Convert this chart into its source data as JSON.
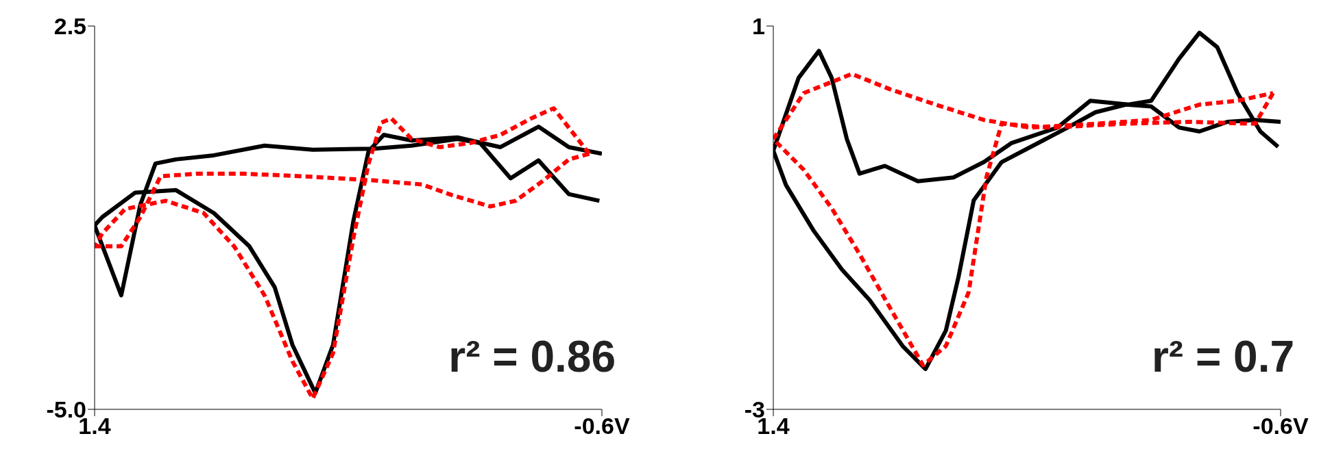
{
  "chart_data": [
    {
      "type": "line",
      "xlim": [
        1.4,
        -0.6
      ],
      "ylim": [
        -5,
        2.5
      ],
      "xticks": [
        1.4,
        {
          "value": -0.6,
          "label": "-0.6V"
        }
      ],
      "yticks": [
        2.5,
        {
          "value": -5,
          "label": "-5.0"
        }
      ],
      "grid": false,
      "legend": false,
      "marker": "none",
      "annotations": [
        "r² = 0.86"
      ],
      "series": [
        {
          "color": "#000000",
          "line_style": "solid",
          "x": [
            1.4,
            1.295,
            1.22,
            1.16,
            1.08,
            0.93,
            0.73,
            0.54,
            0.3,
            0.15,
            -0.03,
            -0.12,
            -0.24,
            -0.35,
            -0.47,
            -0.59
          ],
          "values": [
            -1.4,
            -2.77,
            -1.0,
            -0.19,
            -0.11,
            -0.03,
            0.16,
            0.08,
            0.1,
            0.16,
            0.29,
            0.21,
            -0.48,
            -0.13,
            -0.79,
            -0.92
          ]
        },
        {
          "color": "#000000",
          "line_style": "solid",
          "x": [
            -0.6,
            -0.47,
            -0.35,
            -0.2,
            -0.03,
            0.15,
            0.26,
            0.32,
            0.38,
            0.46,
            0.53,
            0.62,
            0.69,
            0.79,
            0.93,
            1.08,
            1.24,
            1.37,
            1.4
          ],
          "values": [
            0,
            0.13,
            0.53,
            0.13,
            0.32,
            0.26,
            0.37,
            0.05,
            -1.32,
            -3.74,
            -4.68,
            -3.74,
            -2.61,
            -1.81,
            -1.16,
            -0.71,
            -0.76,
            -1.24,
            -1.4
          ]
        },
        {
          "color": "#ff0000",
          "line_style": "dashed",
          "x": [
            1.4,
            1.295,
            1.22,
            1.14,
            1.0,
            0.81,
            0.58,
            0.3,
            0.11,
            -0.01,
            -0.16,
            -0.26,
            -0.37,
            -0.47,
            -0.55
          ],
          "values": [
            -1.81,
            -1.81,
            -1.24,
            -0.44,
            -0.39,
            -0.39,
            -0.44,
            -0.52,
            -0.6,
            -0.81,
            -1.03,
            -0.92,
            -0.52,
            -0.11,
            0
          ]
        },
        {
          "color": "#ff0000",
          "line_style": "dashed",
          "x": [
            -0.55,
            -0.41,
            -0.32,
            -0.2,
            -0.08,
            0.04,
            0.15,
            0.23,
            0.27,
            0.32,
            0.38,
            0.46,
            0.54,
            0.62,
            0.73,
            0.85,
            0.97,
            1.12,
            1.28,
            1.37,
            1.4
          ],
          "values": [
            0,
            0.89,
            0.69,
            0.37,
            0.21,
            0.13,
            0.29,
            0.69,
            0.61,
            -0.19,
            -1.65,
            -3.9,
            -4.79,
            -4.06,
            -2.77,
            -1.81,
            -1.16,
            -0.92,
            -1.08,
            -1.56,
            -1.81
          ]
        }
      ]
    },
    {
      "type": "line",
      "xlim": [
        1.4,
        -0.6
      ],
      "ylim": [
        -3,
        1
      ],
      "xticks": [
        1.4,
        {
          "value": -0.6,
          "label": "-0.6V"
        }
      ],
      "yticks": [
        1,
        -3
      ],
      "grid": false,
      "legend": false,
      "marker": "none",
      "annotations": [
        "r² = 0.7"
      ],
      "series": [
        {
          "color": "#000000",
          "line_style": "solid",
          "x": [
            1.4,
            1.3,
            1.22,
            1.17,
            1.11,
            1.06,
            0.96,
            0.83,
            0.69,
            0.57,
            0.46,
            0.28,
            0.15,
            0,
            -0.09,
            -0.2,
            -0.28,
            -0.35,
            -0.43,
            -0.52,
            -0.59
          ],
          "values": [
            -0.3,
            0.46,
            0.74,
            0.46,
            -0.18,
            -0.54,
            -0.46,
            -0.62,
            -0.58,
            -0.42,
            -0.22,
            -0.06,
            0.22,
            0.18,
            0.22,
            0.66,
            0.93,
            0.78,
            0.3,
            -0.1,
            -0.26
          ]
        },
        {
          "color": "#000000",
          "line_style": "solid",
          "x": [
            -0.6,
            -0.5,
            -0.39,
            -0.28,
            -0.2,
            -0.09,
            0.01,
            0.13,
            0.24,
            0.5,
            0.61,
            0.67,
            0.72,
            0.8,
            0.89,
            1.02,
            1.13,
            1.24,
            1.35,
            1.4
          ],
          "values": [
            0,
            0.02,
            0,
            -0.1,
            -0.06,
            0.16,
            0.18,
            0.1,
            -0.06,
            -0.42,
            -0.82,
            -1.62,
            -2.18,
            -2.58,
            -2.34,
            -1.86,
            -1.54,
            -1.14,
            -0.66,
            -0.3
          ]
        },
        {
          "color": "#ff0000",
          "line_style": "dashed",
          "x": [
            1.4,
            1.28,
            1.09,
            0.94,
            0.76,
            0.57,
            0.39,
            0.13,
            -0.09,
            -0.28,
            -0.43,
            -0.57
          ],
          "values": [
            -0.18,
            0.3,
            0.5,
            0.34,
            0.18,
            0.02,
            -0.06,
            -0.02,
            0.02,
            0.18,
            0.22,
            0.3
          ]
        },
        {
          "color": "#ff0000",
          "line_style": "dashed",
          "x": [
            -0.57,
            -0.5,
            -0.24,
            0.02,
            0.31,
            0.5,
            0.56,
            0.63,
            0.72,
            0.81,
            0.94,
            1.06,
            1.17,
            1.28,
            1.4
          ],
          "values": [
            0.3,
            -0.02,
            0,
            -0.02,
            -0.06,
            -0.02,
            -0.58,
            -1.78,
            -2.34,
            -2.54,
            -1.94,
            -1.38,
            -0.9,
            -0.5,
            -0.18
          ]
        }
      ]
    }
  ]
}
